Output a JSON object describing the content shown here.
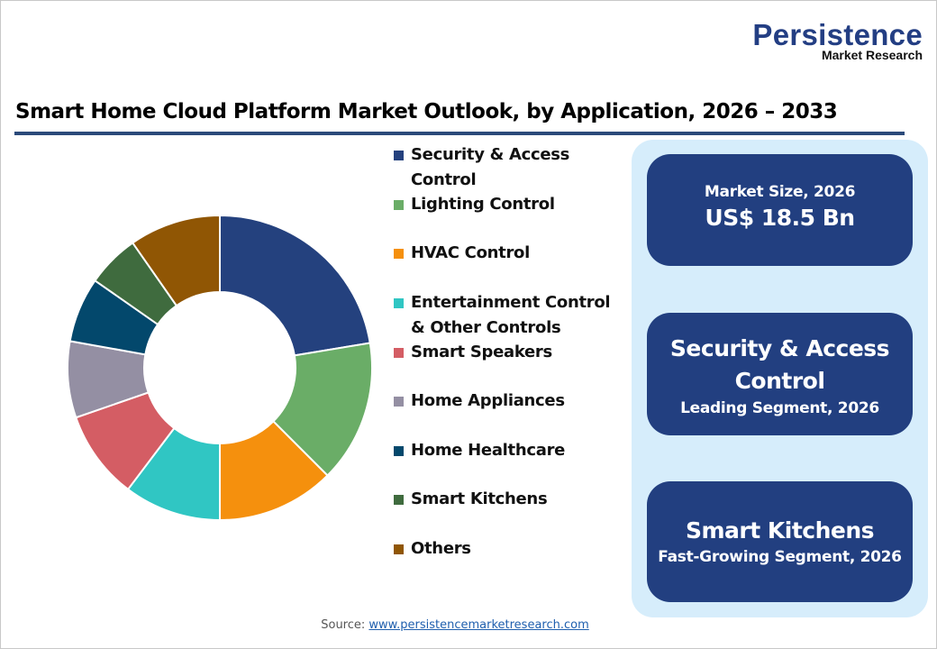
{
  "logo": {
    "main": "Persistence",
    "sub": "Market Research"
  },
  "title": "Smart Home Cloud Platform Market Outlook, by Application, 2026 – 2033",
  "legend": [
    {
      "label": "Security & Access Control",
      "color": "#24417e"
    },
    {
      "label": "Lighting Control",
      "color": "#6aad67"
    },
    {
      "label": "HVAC Control",
      "color": "#f5900d"
    },
    {
      "label": "Entertainment Control & Other Controls",
      "color": "#30c6c3"
    },
    {
      "label": "Smart Speakers",
      "color": "#d45d64"
    },
    {
      "label": "Home Appliances",
      "color": "#948fa3"
    },
    {
      "label": "Home Healthcare",
      "color": "#03486c"
    },
    {
      "label": "Smart Kitchens",
      "color": "#3f6b3e"
    },
    {
      "label": "Others",
      "color": "#905604"
    }
  ],
  "cards": {
    "market_size": {
      "label": "Market Size, 2026",
      "value": "US$ 18.5 Bn"
    },
    "leading": {
      "title_line1": "Security & Access",
      "title_line2": "Control",
      "subtitle": "Leading Segment, 2026"
    },
    "fastest": {
      "title": "Smart Kitchens",
      "subtitle": "Fast-Growing Segment, 2026"
    }
  },
  "source": {
    "label": "Source: ",
    "link": "www.persistencemarketresearch.com"
  },
  "chart_data": {
    "type": "pie",
    "subtype": "donut",
    "title": "Smart Home Cloud Platform Market Outlook, by Application, 2026 – 2033",
    "categories": [
      "Security & Access Control",
      "Lighting Control",
      "HVAC Control",
      "Entertainment Control & Other Controls",
      "Smart Speakers",
      "Home Appliances",
      "Home Healthcare",
      "Smart Kitchens",
      "Others"
    ],
    "values": [
      22.4,
      15.1,
      12.5,
      10.3,
      9.4,
      8.1,
      6.9,
      5.6,
      9.7
    ],
    "unit": "% share (estimated from slice angles, no data labels shown)",
    "colors": [
      "#24417e",
      "#6aad67",
      "#f5900d",
      "#30c6c3",
      "#d45d64",
      "#948fa3",
      "#03486c",
      "#3f6b3e",
      "#905604"
    ],
    "start_angle": "12 o'clock, clockwise",
    "legend_position": "right",
    "annotations": [
      "Market Size, 2026: US$ 18.5 Bn",
      "Leading Segment, 2026: Security & Access Control",
      "Fast-Growing Segment, 2026: Smart Kitchens"
    ]
  }
}
